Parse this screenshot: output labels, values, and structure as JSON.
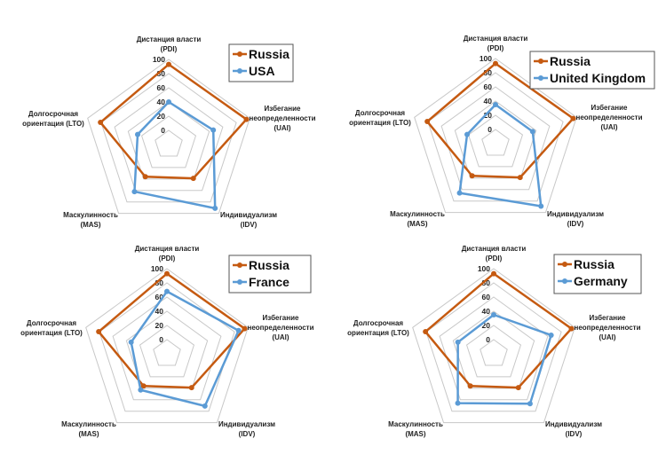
{
  "colors": {
    "russia": "#c55a11",
    "other": "#5b9bd5",
    "grid": "#c8c8c8"
  },
  "chart_data": [
    {
      "type": "radar",
      "axes": [
        [
          "Дистанция власти",
          "(PDI)"
        ],
        [
          "Избегание",
          "неопределенности",
          "(UAI)"
        ],
        [
          "Индивидуализм",
          "(IDV)"
        ],
        [
          "Маскулинность",
          "(MAS)"
        ],
        [
          "Долгосрочная",
          "ориентация (LTO)"
        ]
      ],
      "ticks": [
        "0",
        "20",
        "40",
        "60",
        "80",
        "100"
      ],
      "range": [
        -20,
        100
      ],
      "legend_position": "top-right",
      "series": [
        {
          "name": "Russia",
          "values": [
            93,
            95,
            39,
            36,
            81
          ]
        },
        {
          "name": "USA",
          "values": [
            40,
            46,
            91,
            62,
            26
          ]
        }
      ]
    },
    {
      "type": "radar",
      "axes": [
        [
          "Дистанция власти",
          "(PDI)"
        ],
        [
          "Избегание",
          "неопределенности",
          "(UAI)"
        ],
        [
          "Индивидуализм",
          "(IDV)"
        ],
        [
          "Маскулинность",
          "(MAS)"
        ],
        [
          "Долгосрочная",
          "ориентация (LTO)"
        ]
      ],
      "ticks": [
        "0",
        "20",
        "40",
        "60",
        "80",
        "100"
      ],
      "range": [
        -20,
        100
      ],
      "legend_position": "top-right",
      "series": [
        {
          "name": "Russia",
          "values": [
            93,
            95,
            39,
            36,
            81
          ]
        },
        {
          "name": "United Kingdom",
          "values": [
            35,
            35,
            89,
            66,
            22
          ]
        }
      ]
    },
    {
      "type": "radar",
      "axes": [
        [
          "Дистанция власти",
          "(PDI)"
        ],
        [
          "Избегание",
          "неопределенности",
          "(UAI)"
        ],
        [
          "Индивидуализм",
          "(IDV)"
        ],
        [
          "Маскулинность",
          "(MAS)"
        ],
        [
          "Долгосрочная",
          "ориентация (LTO)"
        ]
      ],
      "ticks": [
        "0",
        "20",
        "40",
        "60",
        "80",
        "100"
      ],
      "range": [
        -20,
        100
      ],
      "legend_position": "top-right",
      "series": [
        {
          "name": "Russia",
          "values": [
            93,
            95,
            39,
            36,
            81
          ]
        },
        {
          "name": "France",
          "values": [
            68,
            86,
            71,
            43,
            33
          ]
        }
      ]
    },
    {
      "type": "radar",
      "axes": [
        [
          "Дистанция власти",
          "(PDI)"
        ],
        [
          "Избегание",
          "неопределенности",
          "(UAI)"
        ],
        [
          "Индивидуализм",
          "(IDV)"
        ],
        [
          "Маскулинность",
          "(MAS)"
        ],
        [
          "Долгосрочная",
          "ориентация (LTO)"
        ]
      ],
      "ticks": [
        "0",
        "20",
        "40",
        "60",
        "80",
        "100"
      ],
      "range": [
        -20,
        100
      ],
      "legend_position": "top-right",
      "series": [
        {
          "name": "Russia",
          "values": [
            93,
            95,
            39,
            36,
            81
          ]
        },
        {
          "name": "Germany",
          "values": [
            35,
            65,
            67,
            66,
            33
          ]
        }
      ]
    }
  ]
}
